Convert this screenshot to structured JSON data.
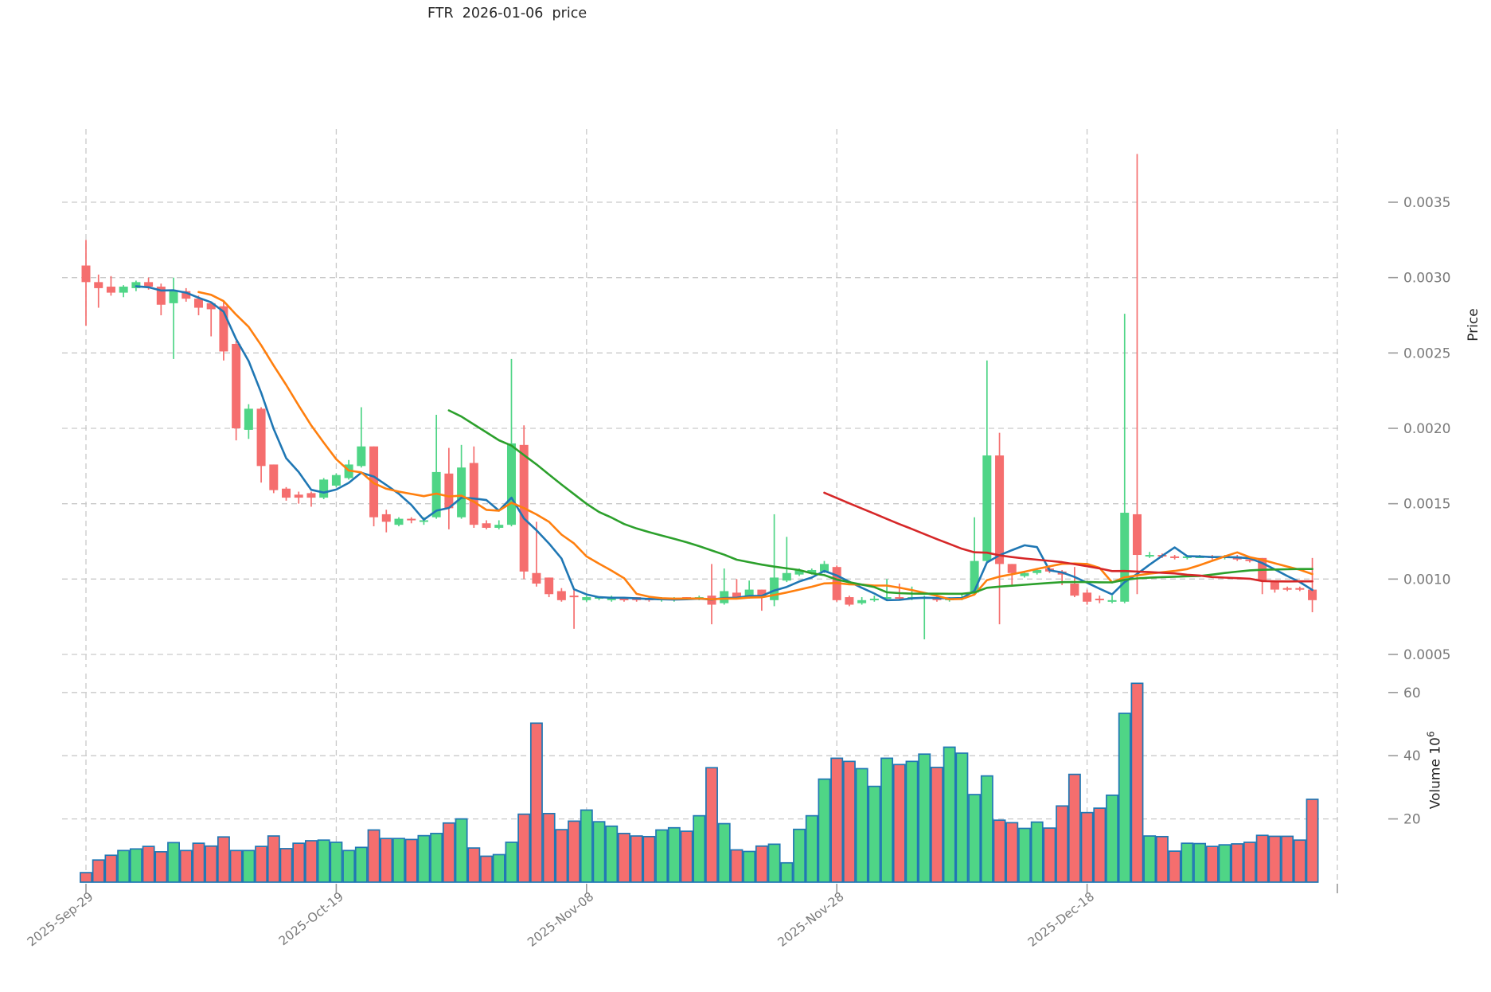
{
  "title": "FTR  2026-01-06  price",
  "axes": {
    "price_label": "Price",
    "volume_label_base": "Volume  10",
    "volume_label_exp": "6"
  },
  "chart_data": {
    "type": "candlestick",
    "subtype": "price+volume-panels",
    "grid": true,
    "price_unit": 1e-05,
    "volume_unit": "millions",
    "price_tick_labels": [
      "0.0005",
      "0.0010",
      "0.0015",
      "0.0020",
      "0.0025",
      "0.0030",
      "0.0035"
    ],
    "volume_tick_labels": [
      "20",
      "40",
      "60"
    ],
    "x_ticks": [
      {
        "index": 0,
        "label": "2025-Sep-29"
      },
      {
        "index": 20,
        "label": "2025-Oct-19"
      },
      {
        "index": 40,
        "label": "2025-Nov-08"
      },
      {
        "index": 60,
        "label": "2025-Nov-28"
      },
      {
        "index": 80,
        "label": "2025-Dec-18"
      },
      {
        "index": 100,
        "label": ""
      }
    ],
    "ylim_price": [
      0.00044,
      0.00398
    ],
    "ylim_volume": [
      0,
      66
    ],
    "ma_lines": [
      {
        "name": "MA5",
        "window": 5,
        "color": "#1f77b4"
      },
      {
        "name": "MA10",
        "window": 10,
        "color": "#ff7f0e"
      },
      {
        "name": "MA30",
        "window": 30,
        "color": "#2ca02c"
      },
      {
        "name": "MA60",
        "window": 60,
        "color": "#d62728"
      }
    ],
    "colors": {
      "up": "#4fd586",
      "down": "#f56e6e",
      "volume_edge": "#2077b4",
      "grid": "#c9c9c9",
      "tick_text": "#7a7a7a",
      "title_text": "#262626"
    },
    "candles_format": [
      "date",
      "open",
      "high",
      "low",
      "close",
      "volume"
    ],
    "candles": [
      [
        "2025-09-29",
        308,
        325,
        268,
        297,
        3.0
      ],
      [
        "2025-09-30",
        297,
        302,
        280,
        293,
        7.0
      ],
      [
        "2025-10-01",
        294,
        301,
        288,
        290,
        8.5
      ],
      [
        "2025-10-02",
        290,
        295,
        287,
        294,
        10.0
      ],
      [
        "2025-10-03",
        293,
        298,
        291,
        297,
        10.5
      ],
      [
        "2025-10-04",
        297,
        300,
        292,
        294,
        11.3
      ],
      [
        "2025-10-05",
        294,
        296,
        275,
        282,
        9.6
      ],
      [
        "2025-10-06",
        283,
        300,
        246,
        291,
        12.5
      ],
      [
        "2025-10-07",
        291,
        293,
        284,
        286,
        10.0
      ],
      [
        "2025-10-08",
        286,
        288,
        275,
        280,
        12.3
      ],
      [
        "2025-10-09",
        283,
        284,
        261,
        279,
        11.4
      ],
      [
        "2025-10-10",
        281,
        284,
        245,
        251,
        14.3
      ],
      [
        "2025-10-11",
        256,
        258,
        192,
        200,
        10.0
      ],
      [
        "2025-10-12",
        199,
        216,
        193,
        213,
        10.0
      ],
      [
        "2025-10-13",
        213,
        214,
        164,
        175,
        11.3
      ],
      [
        "2025-10-14",
        176,
        176,
        157,
        159,
        14.6
      ],
      [
        "2025-10-15",
        160,
        161,
        152,
        154,
        10.6
      ],
      [
        "2025-10-16",
        156,
        158,
        150,
        154,
        12.3
      ],
      [
        "2025-10-17",
        157,
        158,
        148,
        154,
        13.1
      ],
      [
        "2025-10-18",
        154,
        167,
        153,
        166,
        13.3
      ],
      [
        "2025-10-19",
        162,
        170,
        161,
        169,
        12.6
      ],
      [
        "2025-10-20",
        167,
        179,
        166,
        176,
        10.0
      ],
      [
        "2025-10-21",
        175,
        214,
        174,
        188,
        11.0
      ],
      [
        "2025-10-22",
        188,
        188,
        135,
        141,
        16.5
      ],
      [
        "2025-10-23",
        143,
        146,
        131,
        138,
        13.8
      ],
      [
        "2025-10-24",
        136,
        141,
        135,
        140,
        13.8
      ],
      [
        "2025-10-25",
        140,
        141,
        137,
        139,
        13.5
      ],
      [
        "2025-10-26",
        138,
        141,
        136,
        139,
        14.7
      ],
      [
        "2025-10-27",
        141,
        209,
        140,
        171,
        15.4
      ],
      [
        "2025-10-28",
        170,
        187,
        133,
        147,
        18.7
      ],
      [
        "2025-10-29",
        141,
        189,
        140,
        174,
        20.0
      ],
      [
        "2025-10-30",
        177,
        188,
        134,
        136,
        10.8
      ],
      [
        "2025-10-31",
        137,
        139,
        133,
        134,
        8.2
      ],
      [
        "2025-11-01",
        134,
        139,
        133,
        136,
        8.7
      ],
      [
        "2025-11-02",
        136,
        246,
        135,
        190,
        12.6
      ],
      [
        "2025-11-03",
        189,
        202,
        100,
        105,
        21.5
      ],
      [
        "2025-11-04",
        104,
        138,
        95,
        97,
        50.3
      ],
      [
        "2025-11-05",
        101,
        101,
        88,
        90,
        21.7
      ],
      [
        "2025-11-06",
        92,
        94,
        85,
        86,
        16.6
      ],
      [
        "2025-11-07",
        89,
        94,
        67,
        88,
        19.3
      ],
      [
        "2025-11-08",
        86,
        89,
        85,
        88,
        22.8
      ],
      [
        "2025-11-09",
        87,
        88,
        86,
        88,
        19.1
      ],
      [
        "2025-11-10",
        86,
        89,
        85,
        88,
        17.7
      ],
      [
        "2025-11-11",
        87,
        88,
        85,
        86,
        15.4
      ],
      [
        "2025-11-12",
        88,
        88,
        85,
        86,
        14.6
      ],
      [
        "2025-11-13",
        87,
        88,
        85,
        86,
        14.4
      ],
      [
        "2025-11-14",
        86,
        88,
        85,
        87,
        16.5
      ],
      [
        "2025-11-15",
        86,
        88,
        85,
        87,
        17.2
      ],
      [
        "2025-11-16",
        88,
        88,
        86,
        87,
        16.1
      ],
      [
        "2025-11-17",
        87,
        89,
        86,
        88,
        21.0
      ],
      [
        "2025-11-18",
        89,
        110,
        70,
        83,
        36.2
      ],
      [
        "2025-11-19",
        84,
        107,
        83,
        92,
        18.5
      ],
      [
        "2025-11-20",
        91,
        100,
        87,
        88,
        10.2
      ],
      [
        "2025-11-21",
        88,
        99,
        87,
        93,
        9.7
      ],
      [
        "2025-11-22",
        93,
        93,
        79,
        88,
        11.4
      ],
      [
        "2025-11-23",
        86,
        143,
        82,
        101,
        12.0
      ],
      [
        "2025-11-24",
        99,
        128,
        98,
        104,
        6.1
      ],
      [
        "2025-11-25",
        103,
        107,
        102,
        106,
        16.7
      ],
      [
        "2025-11-26",
        104,
        107,
        103,
        106,
        21.0
      ],
      [
        "2025-11-27",
        105,
        112,
        104,
        110,
        32.6
      ],
      [
        "2025-11-28",
        108,
        109,
        85,
        86,
        39.2
      ],
      [
        "2025-11-29",
        88,
        89,
        82,
        83,
        38.2
      ],
      [
        "2025-11-30",
        84,
        88,
        83,
        86,
        35.9
      ],
      [
        "2025-12-01",
        86,
        89,
        85,
        87,
        30.3
      ],
      [
        "2025-12-02",
        87,
        100,
        86,
        88,
        39.2
      ],
      [
        "2025-12-03",
        88,
        97,
        86,
        87,
        37.2
      ],
      [
        "2025-12-04",
        87,
        95,
        86,
        88,
        38.2
      ],
      [
        "2025-12-05",
        87,
        89,
        60,
        88,
        40.5
      ],
      [
        "2025-12-06",
        88,
        89,
        85,
        86,
        36.3
      ],
      [
        "2025-12-07",
        86,
        88,
        85,
        87,
        42.7
      ],
      [
        "2025-12-08",
        87,
        90,
        86,
        88,
        40.8
      ],
      [
        "2025-12-09",
        91,
        141,
        90,
        112,
        27.7
      ],
      [
        "2025-12-10",
        112,
        245,
        111,
        182,
        33.6
      ],
      [
        "2025-12-11",
        182,
        197,
        70,
        110,
        19.6
      ],
      [
        "2025-12-12",
        110,
        110,
        95,
        104,
        18.8
      ],
      [
        "2025-12-13",
        102,
        105,
        101,
        104,
        17.0
      ],
      [
        "2025-12-14",
        104,
        107,
        103,
        106,
        19.0
      ],
      [
        "2025-12-15",
        107,
        108,
        104,
        105,
        17.1
      ],
      [
        "2025-12-16",
        105,
        106,
        96,
        103,
        24.1
      ],
      [
        "2025-12-17",
        97,
        108,
        88,
        89,
        34.1
      ],
      [
        "2025-12-18",
        91,
        93,
        83,
        85,
        22.0
      ],
      [
        "2025-12-19",
        87,
        89,
        84,
        86,
        23.4
      ],
      [
        "2025-12-20",
        85,
        89,
        84,
        86,
        27.5
      ],
      [
        "2025-12-21",
        85,
        276,
        84,
        144,
        53.4
      ],
      [
        "2025-12-22",
        143,
        382,
        90,
        116,
        62.9
      ],
      [
        "2025-12-23",
        115,
        118,
        114,
        116,
        14.6
      ],
      [
        "2025-12-24",
        116,
        117,
        114,
        115,
        14.4
      ],
      [
        "2025-12-25",
        115,
        116,
        113,
        114,
        9.8
      ],
      [
        "2025-12-26",
        114,
        116,
        113,
        115,
        12.3
      ],
      [
        "2025-12-27",
        114,
        116,
        114,
        115,
        12.2
      ],
      [
        "2025-12-28",
        115,
        116,
        113,
        114,
        11.3
      ],
      [
        "2025-12-29",
        114,
        116,
        113,
        115,
        11.8
      ],
      [
        "2025-12-30",
        115,
        116,
        112,
        113,
        12.1
      ],
      [
        "2025-12-31",
        113,
        115,
        111,
        112,
        12.6
      ],
      [
        "2026-01-01",
        114,
        114,
        90,
        99,
        14.8
      ],
      [
        "2026-01-02",
        98,
        99,
        91,
        93,
        14.5
      ],
      [
        "2026-01-03",
        94,
        95,
        92,
        93,
        14.5
      ],
      [
        "2026-01-04",
        94,
        95,
        92,
        93,
        13.3
      ],
      [
        "2026-01-05",
        93,
        114,
        78,
        86,
        26.2
      ]
    ]
  }
}
